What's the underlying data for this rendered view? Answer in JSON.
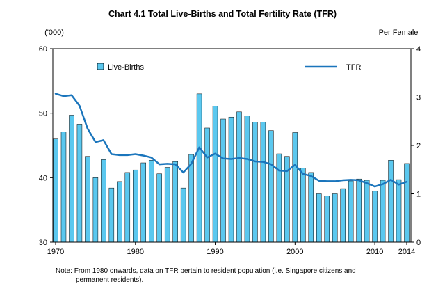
{
  "chart_data": {
    "type": "bar+line",
    "title": "Chart 4.1  Total Live-Births and Total Fertility Rate (TFR)",
    "left_axis_unit": "('000)",
    "right_axis_unit": "Per Female",
    "left_ylim": [
      30,
      60
    ],
    "left_yticks": [
      "30",
      "40",
      "50",
      "60"
    ],
    "right_ylim": [
      0,
      4
    ],
    "right_yticks": [
      "0",
      "1",
      "2",
      "3",
      "4"
    ],
    "xticks": [
      "1970",
      "1980",
      "1990",
      "2000",
      "2010",
      "2014"
    ],
    "years": [
      1970,
      1971,
      1972,
      1973,
      1974,
      1975,
      1976,
      1977,
      1978,
      1979,
      1980,
      1981,
      1982,
      1983,
      1984,
      1985,
      1986,
      1987,
      1988,
      1989,
      1990,
      1991,
      1992,
      1993,
      1994,
      1995,
      1996,
      1997,
      1998,
      1999,
      2000,
      2001,
      2002,
      2003,
      2004,
      2005,
      2006,
      2007,
      2008,
      2009,
      2010,
      2011,
      2012,
      2013,
      2014
    ],
    "series": [
      {
        "name": "Live-Births",
        "type": "bar",
        "color": "#5bc8ef",
        "values": [
          46.0,
          47.1,
          49.7,
          48.3,
          43.3,
          40.0,
          42.8,
          38.4,
          39.4,
          40.8,
          41.2,
          42.3,
          42.7,
          40.6,
          41.6,
          42.5,
          38.4,
          43.6,
          53.0,
          47.7,
          51.1,
          49.1,
          49.4,
          50.2,
          49.6,
          48.6,
          48.6,
          47.3,
          43.7,
          43.3,
          47.0,
          41.5,
          40.8,
          37.5,
          37.2,
          37.5,
          38.3,
          39.5,
          39.8,
          39.6,
          37.9,
          39.6,
          42.7,
          39.7,
          42.2
        ]
      },
      {
        "name": "TFR",
        "type": "line",
        "color": "#1a75bc",
        "values": [
          3.07,
          3.02,
          3.04,
          2.82,
          2.35,
          2.07,
          2.11,
          1.82,
          1.8,
          1.8,
          1.82,
          1.79,
          1.75,
          1.61,
          1.62,
          1.61,
          1.44,
          1.62,
          1.96,
          1.75,
          1.83,
          1.73,
          1.72,
          1.74,
          1.72,
          1.67,
          1.66,
          1.61,
          1.48,
          1.47,
          1.6,
          1.41,
          1.37,
          1.27,
          1.26,
          1.26,
          1.28,
          1.29,
          1.28,
          1.22,
          1.15,
          1.2,
          1.29,
          1.19,
          1.25
        ]
      }
    ],
    "legend": {
      "bar_label": "Live-Births",
      "line_label": "TFR"
    }
  },
  "note": {
    "prefix": "Note:",
    "line1": "From 1980 onwards, data on TFR pertain to resident population (i.e. Singapore citizens and",
    "line2": "permanent residents)."
  }
}
